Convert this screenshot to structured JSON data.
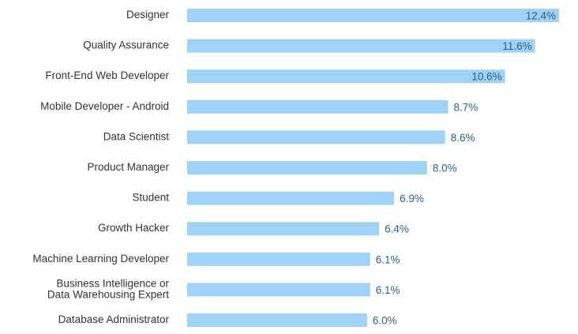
{
  "chart_data": {
    "type": "bar",
    "orientation": "horizontal",
    "title": "",
    "xlabel": "",
    "ylabel": "",
    "categories": [
      [
        "Designer"
      ],
      [
        "Quality Assurance"
      ],
      [
        "Front-End Web Developer"
      ],
      [
        "Mobile Developer - Android"
      ],
      [
        "Data Scientist"
      ],
      [
        "Product Manager"
      ],
      [
        "Student"
      ],
      [
        "Growth Hacker"
      ],
      [
        "Machine Learning Developer"
      ],
      [
        "Business Intelligence or",
        "Data Warehousing Expert"
      ],
      [
        "Database Administrator"
      ]
    ],
    "values": [
      12.4,
      11.6,
      10.6,
      8.7,
      8.6,
      8.0,
      6.9,
      6.4,
      6.1,
      6.1,
      6.0
    ],
    "value_labels": [
      "12.4%",
      "11.6%",
      "10.6%",
      "8.7%",
      "8.6%",
      "8.0%",
      "6.9%",
      "6.4%",
      "6.1%",
      "6.1%",
      "6.0%"
    ],
    "xlim": [
      0,
      12.4
    ],
    "grid": false,
    "legend": "none",
    "bar_color": "#9ed3f7",
    "value_label_color": "#2c5f8a",
    "category_label_color": "#333333"
  }
}
